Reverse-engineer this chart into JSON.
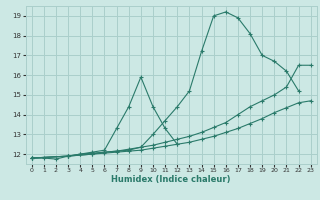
{
  "xlabel": "Humidex (Indice chaleur)",
  "bg_color": "#cce8e4",
  "grid_color": "#aacfcb",
  "line_color": "#2a7a6a",
  "xlim": [
    -0.5,
    23.5
  ],
  "ylim": [
    11.5,
    19.5
  ],
  "xticks": [
    0,
    1,
    2,
    3,
    4,
    5,
    6,
    7,
    8,
    9,
    10,
    11,
    12,
    13,
    14,
    15,
    16,
    17,
    18,
    19,
    20,
    21,
    22,
    23
  ],
  "yticks": [
    12,
    13,
    14,
    15,
    16,
    17,
    18,
    19
  ],
  "curves": [
    {
      "x": [
        0,
        1,
        2,
        3,
        4,
        5,
        6,
        7,
        8,
        9,
        10,
        11,
        12,
        13,
        14,
        15,
        16,
        17,
        18,
        19,
        20,
        21,
        22
      ],
      "y": [
        11.8,
        11.8,
        11.75,
        11.9,
        12.0,
        12.05,
        12.1,
        12.15,
        12.2,
        12.35,
        13.0,
        13.7,
        14.4,
        15.2,
        17.2,
        19.0,
        19.2,
        18.9,
        18.1,
        17.0,
        16.7,
        16.2,
        15.2
      ]
    },
    {
      "x": [
        0,
        3,
        4,
        5,
        6,
        7,
        8,
        9,
        10,
        11,
        12
      ],
      "y": [
        11.8,
        11.9,
        12.0,
        12.1,
        12.2,
        13.3,
        14.4,
        15.9,
        14.4,
        13.3,
        12.5
      ]
    },
    {
      "x": [
        0,
        3,
        5,
        6,
        7,
        8,
        9,
        10,
        11,
        12,
        13,
        14,
        15,
        16,
        17,
        18,
        19,
        20,
        21,
        22,
        23
      ],
      "y": [
        11.8,
        11.9,
        12.0,
        12.1,
        12.15,
        12.25,
        12.35,
        12.45,
        12.6,
        12.75,
        12.9,
        13.1,
        13.35,
        13.6,
        14.0,
        14.4,
        14.7,
        15.0,
        15.4,
        16.5,
        16.5
      ]
    },
    {
      "x": [
        0,
        3,
        5,
        6,
        7,
        8,
        9,
        10,
        11,
        12,
        13,
        14,
        15,
        16,
        17,
        18,
        19,
        20,
        21,
        22,
        23
      ],
      "y": [
        11.8,
        11.9,
        12.0,
        12.05,
        12.1,
        12.15,
        12.2,
        12.3,
        12.4,
        12.5,
        12.6,
        12.75,
        12.9,
        13.1,
        13.3,
        13.55,
        13.8,
        14.1,
        14.35,
        14.6,
        14.7
      ]
    }
  ]
}
